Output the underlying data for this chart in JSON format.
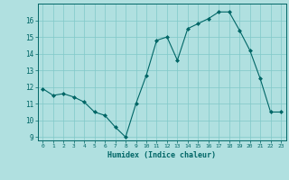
{
  "x": [
    0,
    1,
    2,
    3,
    4,
    5,
    6,
    7,
    8,
    9,
    10,
    11,
    12,
    13,
    14,
    15,
    16,
    17,
    18,
    19,
    20,
    21,
    22,
    23
  ],
  "y": [
    11.9,
    11.5,
    11.6,
    11.4,
    11.1,
    10.5,
    10.3,
    9.6,
    9.0,
    11.0,
    12.7,
    14.8,
    15.0,
    13.6,
    15.5,
    15.8,
    16.1,
    16.5,
    16.5,
    15.4,
    14.2,
    12.5,
    10.5,
    10.5
  ],
  "xlabel": "Humidex (Indice chaleur)",
  "ylim": [
    8.8,
    17.0
  ],
  "xlim": [
    -0.5,
    23.5
  ],
  "yticks": [
    9,
    10,
    11,
    12,
    13,
    14,
    15,
    16
  ],
  "xticks": [
    0,
    1,
    2,
    3,
    4,
    5,
    6,
    7,
    8,
    9,
    10,
    11,
    12,
    13,
    14,
    15,
    16,
    17,
    18,
    19,
    20,
    21,
    22,
    23
  ],
  "line_color": "#006666",
  "marker_color": "#006666",
  "bg_color": "#b0e0e0",
  "grid_color": "#80c8c8",
  "axis_color": "#006666",
  "tick_label_color": "#006666",
  "xlabel_color": "#006666"
}
